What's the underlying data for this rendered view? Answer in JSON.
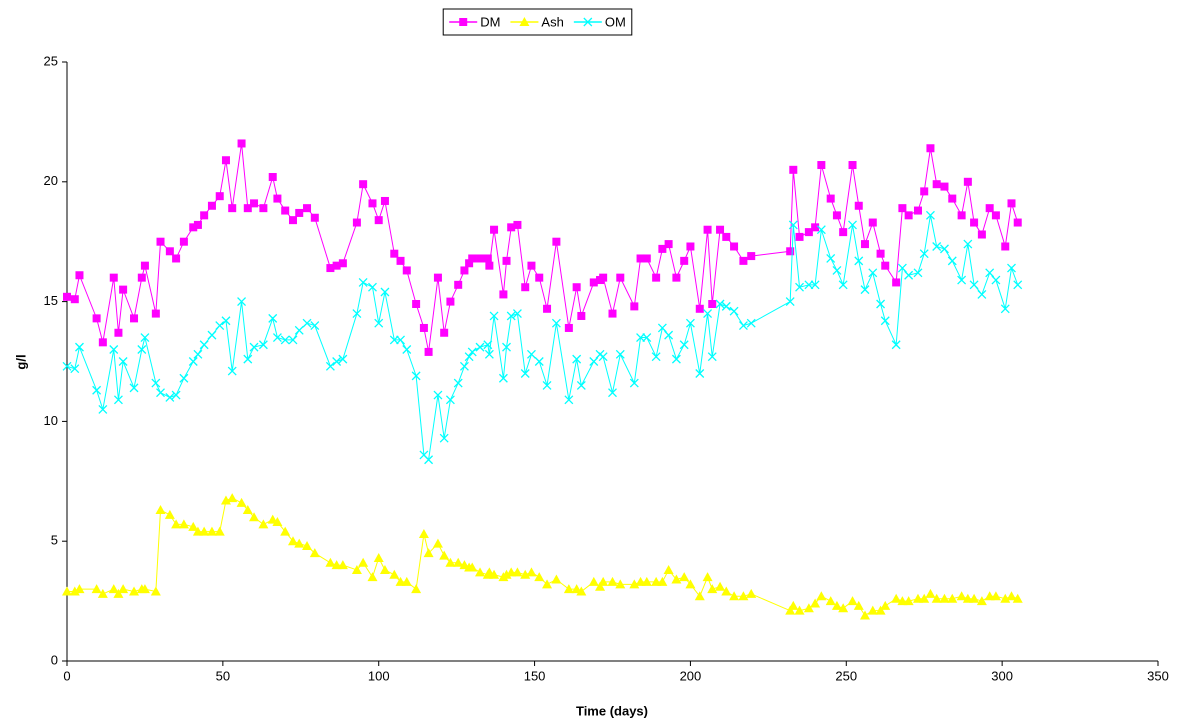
{
  "chart_data": {
    "type": "line",
    "x": [
      0,
      2.5,
      4,
      9.5,
      11.5,
      15,
      16.5,
      18,
      21.5,
      24,
      25,
      28.5,
      30,
      33,
      35,
      37.5,
      40.5,
      42,
      44,
      46.5,
      49,
      51,
      53,
      56,
      58,
      60,
      63,
      66,
      67.5,
      70,
      72.5,
      74.5,
      77,
      79.5,
      84.5,
      86.5,
      88.5,
      93,
      95,
      98,
      100,
      102,
      105,
      107,
      109,
      112,
      114.5,
      116,
      119,
      121,
      123,
      125.5,
      127.5,
      129,
      130,
      132.5,
      135,
      135.5,
      137,
      140,
      141,
      142.5,
      144.5,
      147,
      149,
      151.5,
      154,
      157,
      161,
      163.5,
      165,
      169,
      171,
      172,
      175,
      177.5,
      182,
      184,
      186,
      189,
      191,
      193,
      195.5,
      198,
      200,
      203,
      205.5,
      207,
      209.5,
      211.5,
      214,
      217,
      219.5,
      232,
      233,
      235,
      238,
      240,
      242,
      245,
      247,
      249,
      252,
      254,
      256,
      258.5,
      261,
      262.5,
      266,
      268,
      270,
      273,
      275,
      277,
      279,
      281.5,
      284,
      287,
      289,
      291,
      293.5,
      296,
      298,
      301,
      303,
      305
    ],
    "series": [
      {
        "name": "DM",
        "color": "#ff00ff",
        "marker": "square",
        "values": [
          15.2,
          15.1,
          16.1,
          14.3,
          13.3,
          16.0,
          13.7,
          15.5,
          14.3,
          16.0,
          16.5,
          14.5,
          17.5,
          17.1,
          16.8,
          17.5,
          18.1,
          18.2,
          18.6,
          19.0,
          19.4,
          20.9,
          18.9,
          21.6,
          18.9,
          19.1,
          18.9,
          20.2,
          19.3,
          18.8,
          18.4,
          18.7,
          18.9,
          18.5,
          16.4,
          16.5,
          16.6,
          18.3,
          19.9,
          19.1,
          18.4,
          19.2,
          17.0,
          16.7,
          16.3,
          14.9,
          13.9,
          12.9,
          16.0,
          13.7,
          15.0,
          15.7,
          16.3,
          16.6,
          16.8,
          16.8,
          16.8,
          16.5,
          18.0,
          15.3,
          16.7,
          18.1,
          18.2,
          15.6,
          16.5,
          16.0,
          14.7,
          17.5,
          13.9,
          15.6,
          14.4,
          15.8,
          15.9,
          16.0,
          14.5,
          16.0,
          14.8,
          16.8,
          16.8,
          16.0,
          17.2,
          17.4,
          16.0,
          16.7,
          17.3,
          14.7,
          18.0,
          14.9,
          18.0,
          17.7,
          17.3,
          16.7,
          16.9,
          17.1,
          20.5,
          17.7,
          17.9,
          18.1,
          20.7,
          19.3,
          18.6,
          17.9,
          20.7,
          19.0,
          17.4,
          18.3,
          17.0,
          16.5,
          15.8,
          18.9,
          18.6,
          18.8,
          19.6,
          21.4,
          19.9,
          19.8,
          19.3,
          18.6,
          20.0,
          18.3,
          17.8,
          18.9,
          18.6,
          17.3,
          19.1,
          18.3
        ]
      },
      {
        "name": "Ash",
        "color": "#ffff00",
        "marker": "triangle",
        "values": [
          2.9,
          2.9,
          3.0,
          3.0,
          2.8,
          3.0,
          2.8,
          3.0,
          2.9,
          3.0,
          3.0,
          2.9,
          6.3,
          6.1,
          5.7,
          5.7,
          5.6,
          5.4,
          5.4,
          5.4,
          5.4,
          6.7,
          6.8,
          6.6,
          6.3,
          6.0,
          5.7,
          5.9,
          5.8,
          5.4,
          5.0,
          4.9,
          4.8,
          4.5,
          4.1,
          4.0,
          4.0,
          3.8,
          4.1,
          3.5,
          4.3,
          3.8,
          3.6,
          3.3,
          3.3,
          3.0,
          5.3,
          4.5,
          4.9,
          4.4,
          4.1,
          4.1,
          4.0,
          3.9,
          3.9,
          3.7,
          3.6,
          3.7,
          3.6,
          3.5,
          3.6,
          3.7,
          3.7,
          3.6,
          3.7,
          3.5,
          3.2,
          3.4,
          3.0,
          3.0,
          2.9,
          3.3,
          3.1,
          3.3,
          3.3,
          3.2,
          3.2,
          3.3,
          3.3,
          3.3,
          3.3,
          3.8,
          3.4,
          3.5,
          3.2,
          2.7,
          3.5,
          3.0,
          3.1,
          2.9,
          2.7,
          2.7,
          2.8,
          2.1,
          2.3,
          2.1,
          2.2,
          2.4,
          2.7,
          2.5,
          2.3,
          2.2,
          2.5,
          2.3,
          1.9,
          2.1,
          2.1,
          2.3,
          2.6,
          2.5,
          2.5,
          2.6,
          2.6,
          2.8,
          2.6,
          2.6,
          2.6,
          2.7,
          2.6,
          2.6,
          2.5,
          2.7,
          2.7,
          2.6,
          2.7,
          2.6
        ]
      },
      {
        "name": "OM",
        "color": "#00ffff",
        "marker": "cross",
        "values": [
          12.3,
          12.2,
          13.1,
          11.3,
          10.5,
          13.0,
          10.9,
          12.5,
          11.4,
          13.0,
          13.5,
          11.6,
          11.2,
          11.0,
          11.1,
          11.8,
          12.5,
          12.8,
          13.2,
          13.6,
          14.0,
          14.2,
          12.1,
          15.0,
          12.6,
          13.1,
          13.2,
          14.3,
          13.5,
          13.4,
          13.4,
          13.8,
          14.1,
          14.0,
          12.3,
          12.5,
          12.6,
          14.5,
          15.8,
          15.6,
          14.1,
          15.4,
          13.4,
          13.4,
          13.0,
          11.9,
          8.6,
          8.4,
          11.1,
          9.3,
          10.9,
          11.6,
          12.3,
          12.7,
          12.9,
          13.1,
          13.2,
          12.8,
          14.4,
          11.8,
          13.1,
          14.4,
          14.5,
          12.0,
          12.8,
          12.5,
          11.5,
          14.1,
          10.9,
          12.6,
          11.5,
          12.5,
          12.8,
          12.7,
          11.2,
          12.8,
          11.6,
          13.5,
          13.5,
          12.7,
          13.9,
          13.6,
          12.6,
          13.2,
          14.1,
          12.0,
          14.5,
          12.7,
          14.9,
          14.8,
          14.6,
          14.0,
          14.1,
          15.0,
          18.2,
          15.6,
          15.7,
          15.7,
          18.0,
          16.8,
          16.3,
          15.7,
          18.2,
          16.7,
          15.5,
          16.2,
          14.9,
          14.2,
          13.2,
          16.4,
          16.1,
          16.2,
          17.0,
          18.6,
          17.3,
          17.2,
          16.7,
          15.9,
          17.4,
          15.7,
          15.3,
          16.2,
          15.9,
          14.7,
          16.4,
          15.7
        ]
      }
    ],
    "xlabel": "Time (days)",
    "ylabel": "g/l",
    "xlim": [
      0,
      350
    ],
    "xticks": [
      0,
      50,
      100,
      150,
      200,
      250,
      300,
      350
    ],
    "ylim": [
      0,
      25
    ],
    "yticks": [
      0,
      5,
      10,
      15,
      20,
      25
    ],
    "legend": "top"
  }
}
